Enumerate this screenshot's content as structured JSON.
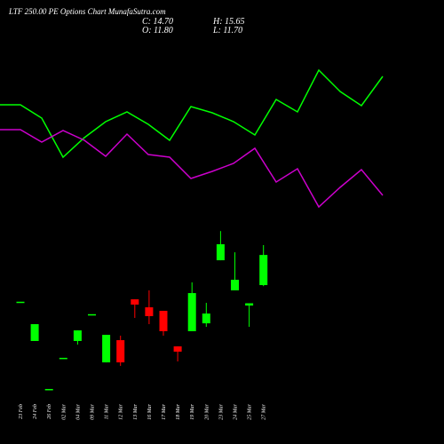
{
  "chart_data": {
    "type": "candlestick",
    "title": "LTF 250.00 PE Options Chart MunafaSutra.com",
    "summary": {
      "close": "C: 14.70",
      "high": "H: 15.65",
      "open": "O: 11.80",
      "low": "L: 11.70"
    },
    "categories": [
      "23 Feb",
      "24 Feb",
      "26 Feb",
      "02 Mar",
      "04 Mar",
      "09 Mar",
      "11 Mar",
      "12 Mar",
      "13 Mar",
      "16 Mar",
      "17 Mar",
      "18 Mar",
      "19 Mar",
      "20 Mar",
      "23 Mar",
      "24 Mar",
      "25 Mar",
      "27 Mar"
    ],
    "open": [
      10.2,
      6.42,
      1.8,
      4.8,
      6.42,
      9.0,
      4.36,
      6.5,
      10.43,
      9.66,
      9.32,
      5.9,
      7.36,
      8.12,
      14.19,
      11.29,
      9.83,
      11.8
    ],
    "high": [
      10.2,
      8.04,
      1.8,
      4.8,
      7.44,
      9.0,
      7.01,
      6.93,
      10.43,
      11.29,
      9.32,
      5.9,
      12.06,
      10.09,
      17.0,
      14.96,
      10.05,
      15.65
    ],
    "low": [
      10.2,
      6.42,
      1.8,
      4.8,
      6.07,
      9.0,
      4.36,
      4.02,
      8.64,
      8.04,
      6.93,
      4.45,
      7.36,
      7.78,
      14.19,
      11.29,
      7.78,
      11.7
    ],
    "close": [
      10.2,
      8.04,
      1.8,
      4.8,
      7.44,
      9.0,
      7.01,
      4.36,
      9.92,
      8.81,
      7.36,
      5.39,
      11.03,
      9.06,
      15.73,
      12.31,
      10.05,
      14.7
    ],
    "up_color": "#00ff00",
    "down_color": "#ff0000",
    "ylim": [
      1,
      18
    ],
    "y2lim": [
      0,
      100
    ],
    "series": [
      {
        "name": "green-line",
        "color": "#00ff00",
        "axis": "y2",
        "values": [
          71,
          63.5,
          41.5,
          52.5,
          61.5,
          67,
          60,
          51,
          70,
          66.5,
          61.5,
          54,
          74,
          67,
          90.5,
          78.5,
          70.5,
          87
        ]
      },
      {
        "name": "magenta-line",
        "color": "#cc00cc",
        "axis": "y2",
        "values": [
          57,
          50,
          56.5,
          51,
          42,
          54.5,
          43,
          41.5,
          29.5,
          33.5,
          38,
          46.5,
          27.5,
          35,
          13.5,
          24.5,
          34.5,
          20
        ]
      }
    ]
  }
}
